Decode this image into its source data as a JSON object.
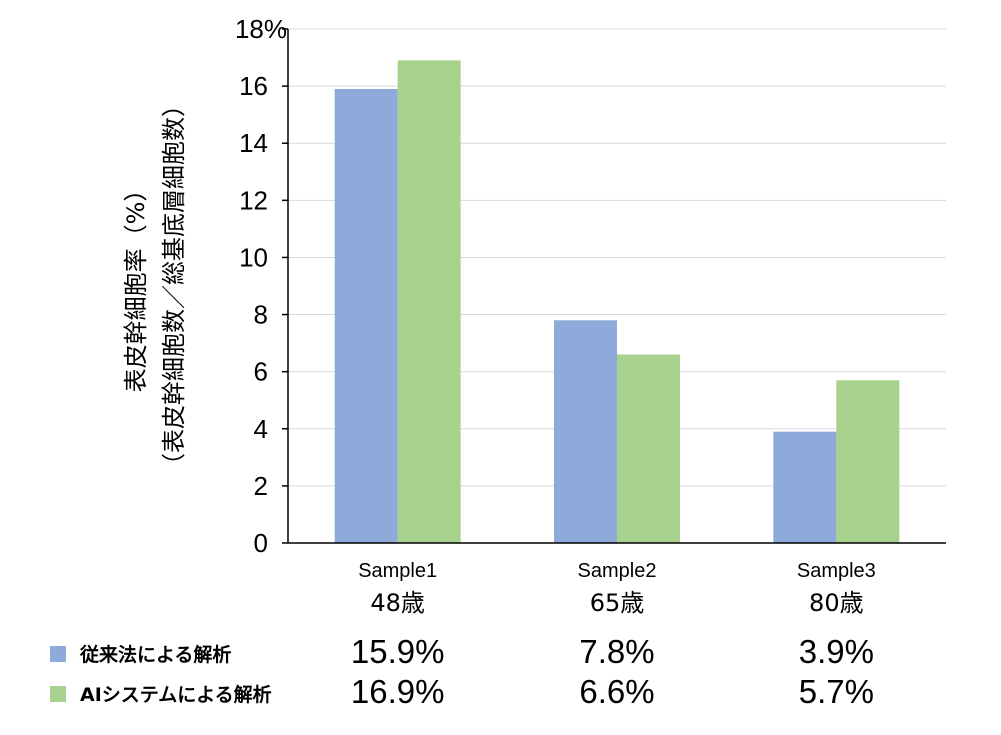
{
  "chart_data": {
    "type": "bar",
    "title": "",
    "ylabel": [
      "表皮幹細胞率（%）",
      "（表皮幹細胞数／総基底層細胞数）"
    ],
    "xlabel": "",
    "ylim": [
      0,
      18
    ],
    "yticks": [
      0,
      2,
      4,
      6,
      8,
      10,
      12,
      14,
      16,
      18
    ],
    "ytick_labels": [
      "0",
      "2",
      "4",
      "6",
      "8",
      "10",
      "12",
      "14",
      "16",
      "18%"
    ],
    "grid": true,
    "categories": [
      {
        "name": "Sample1",
        "age": "48歳"
      },
      {
        "name": "Sample2",
        "age": "65歳"
      },
      {
        "name": "Sample3",
        "age": "80歳"
      }
    ],
    "series": [
      {
        "name": "従来法による解析",
        "color": "#8eaadb",
        "values": [
          15.9,
          7.8,
          3.9
        ],
        "labels": [
          "15.9%",
          "7.8%",
          "3.9%"
        ]
      },
      {
        "name": "AIシステムによる解析",
        "color": "#a9d18e",
        "values": [
          16.9,
          6.6,
          5.7
        ],
        "labels": [
          "16.9%",
          "6.6%",
          "5.7%"
        ]
      }
    ],
    "legend": "bottom-left table"
  }
}
